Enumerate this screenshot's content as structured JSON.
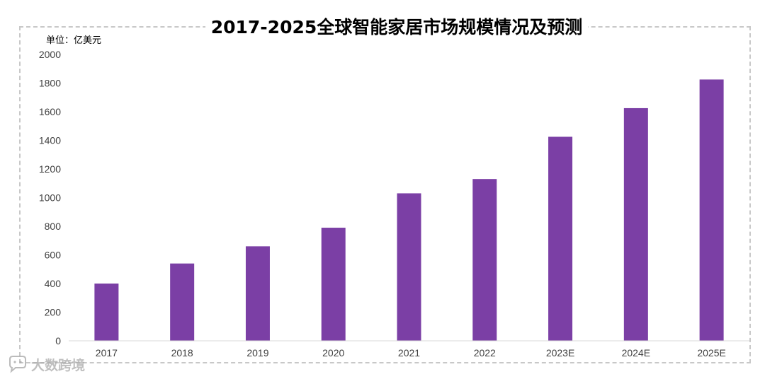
{
  "chart_data": {
    "type": "bar",
    "title": "2017-2025全球智能家居市场规模情况及预测",
    "unit_label": "单位：亿美元",
    "categories": [
      "2017",
      "2018",
      "2019",
      "2020",
      "2021",
      "2022",
      "2023E",
      "2024E",
      "2025E"
    ],
    "values": [
      400,
      540,
      660,
      790,
      1030,
      1130,
      1425,
      1625,
      1825
    ],
    "ylim": [
      0,
      2000
    ],
    "yticks": [
      0,
      200,
      400,
      600,
      800,
      1000,
      1200,
      1400,
      1600,
      1800,
      2000
    ],
    "bar_color": "#7b3fa5",
    "grid": false,
    "legend": "none"
  },
  "watermark": {
    "text": "大数跨境",
    "icon": "chat-bubble-logo-icon"
  }
}
